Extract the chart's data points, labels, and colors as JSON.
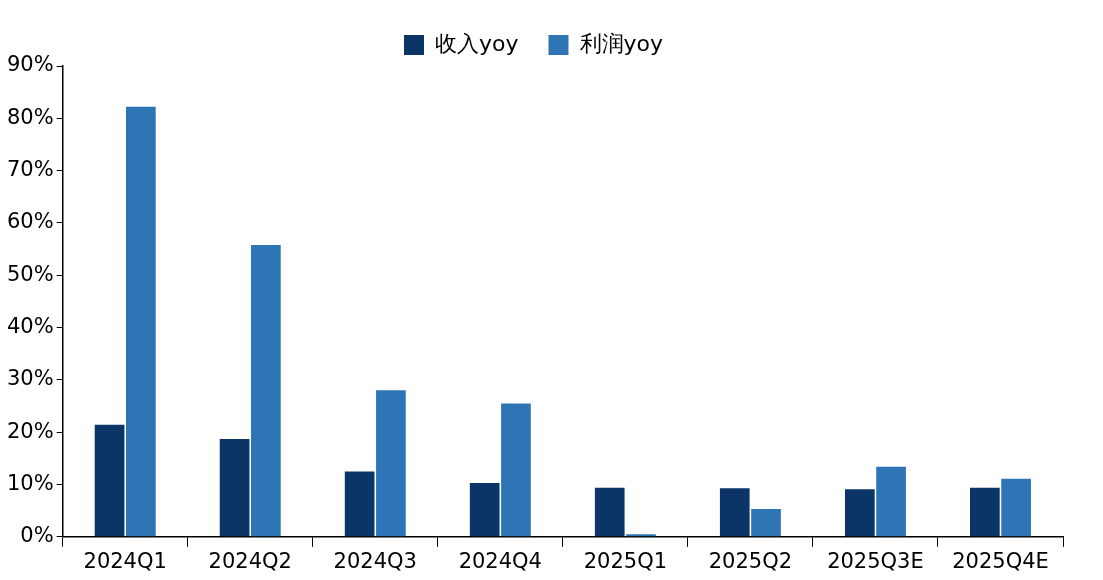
{
  "chart_data": {
    "type": "bar",
    "categories": [
      "2024Q1",
      "2024Q2",
      "2024Q3",
      "2024Q4",
      "2025Q1",
      "2025Q2",
      "2025Q3E",
      "2025Q4E"
    ],
    "series": [
      {
        "name": "收入yoy",
        "color": "#0a3566",
        "values": [
          21.4,
          18.7,
          12.5,
          10.3,
          9.4,
          9.3,
          9.1,
          9.4
        ]
      },
      {
        "name": "利润yoy",
        "color": "#2e75b6",
        "values": [
          82.2,
          55.8,
          28.0,
          25.5,
          0.5,
          5.3,
          13.4,
          11.1
        ]
      }
    ],
    "ylim": [
      0,
      90
    ],
    "yticks": [
      {
        "value": 0,
        "label": "0%"
      },
      {
        "value": 10,
        "label": "10%"
      },
      {
        "value": 20,
        "label": "20%"
      },
      {
        "value": 30,
        "label": "30%"
      },
      {
        "value": 40,
        "label": "40%"
      },
      {
        "value": 50,
        "label": "50%"
      },
      {
        "value": 60,
        "label": "60%"
      },
      {
        "value": 70,
        "label": "70%"
      },
      {
        "value": 80,
        "label": "80%"
      },
      {
        "value": 90,
        "label": "90%"
      }
    ],
    "grid": false,
    "legend": "top"
  }
}
